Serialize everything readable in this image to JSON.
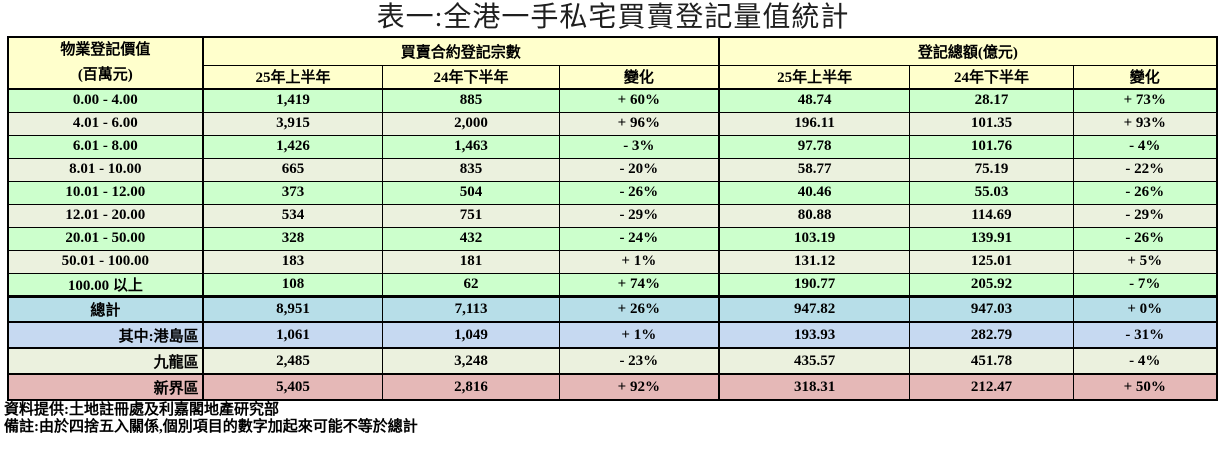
{
  "title": "表一:全港一手私宅買賣登記量值統計",
  "colors": {
    "header_bg": "#ffffcc",
    "row_green": "#ccffcc",
    "row_alt": "#ebf1de",
    "total_bg": "#b7dee8",
    "hki_bg": "#c6d9f1",
    "kln_bg": "#ebf1de",
    "nt_bg": "#e5b8b7",
    "border": "#000000"
  },
  "table": {
    "corner_header_line1": "物業登記價值",
    "corner_header_line2": "(百萬元)",
    "group_headers": [
      "買賣合約登記宗數",
      "登記總額(億元)"
    ],
    "sub_headers": [
      "25年上半年",
      "24年下半年",
      "變化"
    ],
    "rows": [
      {
        "label": "0.00 - 4.00",
        "values": [
          "1,419",
          "885",
          "+ 60%",
          "48.74",
          "28.17",
          "+ 73%"
        ]
      },
      {
        "label": "4.01 - 6.00",
        "values": [
          "3,915",
          "2,000",
          "+ 96%",
          "196.11",
          "101.35",
          "+ 93%"
        ]
      },
      {
        "label": "6.01 - 8.00",
        "values": [
          "1,426",
          "1,463",
          "- 3%",
          "97.78",
          "101.76",
          "- 4%"
        ]
      },
      {
        "label": "8.01 - 10.00",
        "values": [
          "665",
          "835",
          "- 20%",
          "58.77",
          "75.19",
          "- 22%"
        ]
      },
      {
        "label": "10.01 - 12.00",
        "values": [
          "373",
          "504",
          "- 26%",
          "40.46",
          "55.03",
          "- 26%"
        ]
      },
      {
        "label": "12.01 - 20.00",
        "values": [
          "534",
          "751",
          "- 29%",
          "80.88",
          "114.69",
          "- 29%"
        ]
      },
      {
        "label": "20.01 - 50.00",
        "values": [
          "328",
          "432",
          "- 24%",
          "103.19",
          "139.91",
          "- 26%"
        ]
      },
      {
        "label": "50.01 - 100.00",
        "values": [
          "183",
          "181",
          "+ 1%",
          "131.12",
          "125.01",
          "+ 5%"
        ]
      },
      {
        "label": "100.00 以上",
        "values": [
          "108",
          "62",
          "+ 74%",
          "190.77",
          "205.92",
          "- 7%"
        ]
      }
    ],
    "summary_rows": [
      {
        "type": "total",
        "label": "總計",
        "values": [
          "8,951",
          "7,113",
          "+ 26%",
          "947.82",
          "947.03",
          "+ 0%"
        ]
      },
      {
        "type": "hki",
        "label": "其中:港島區",
        "values": [
          "1,061",
          "1,049",
          "+ 1%",
          "193.93",
          "282.79",
          "- 31%"
        ]
      },
      {
        "type": "kln",
        "label": "九龍區",
        "values": [
          "2,485",
          "3,248",
          "- 23%",
          "435.57",
          "451.78",
          "- 4%"
        ]
      },
      {
        "type": "nt",
        "label": "新界區",
        "values": [
          "5,405",
          "2,816",
          "+ 92%",
          "318.31",
          "212.47",
          "+ 50%"
        ]
      }
    ]
  },
  "footnotes": [
    "資料提供:土地註冊處及利嘉閣地產研究部",
    "備註:由於四捨五入關係,個別項目的數字加起來可能不等於總計"
  ]
}
